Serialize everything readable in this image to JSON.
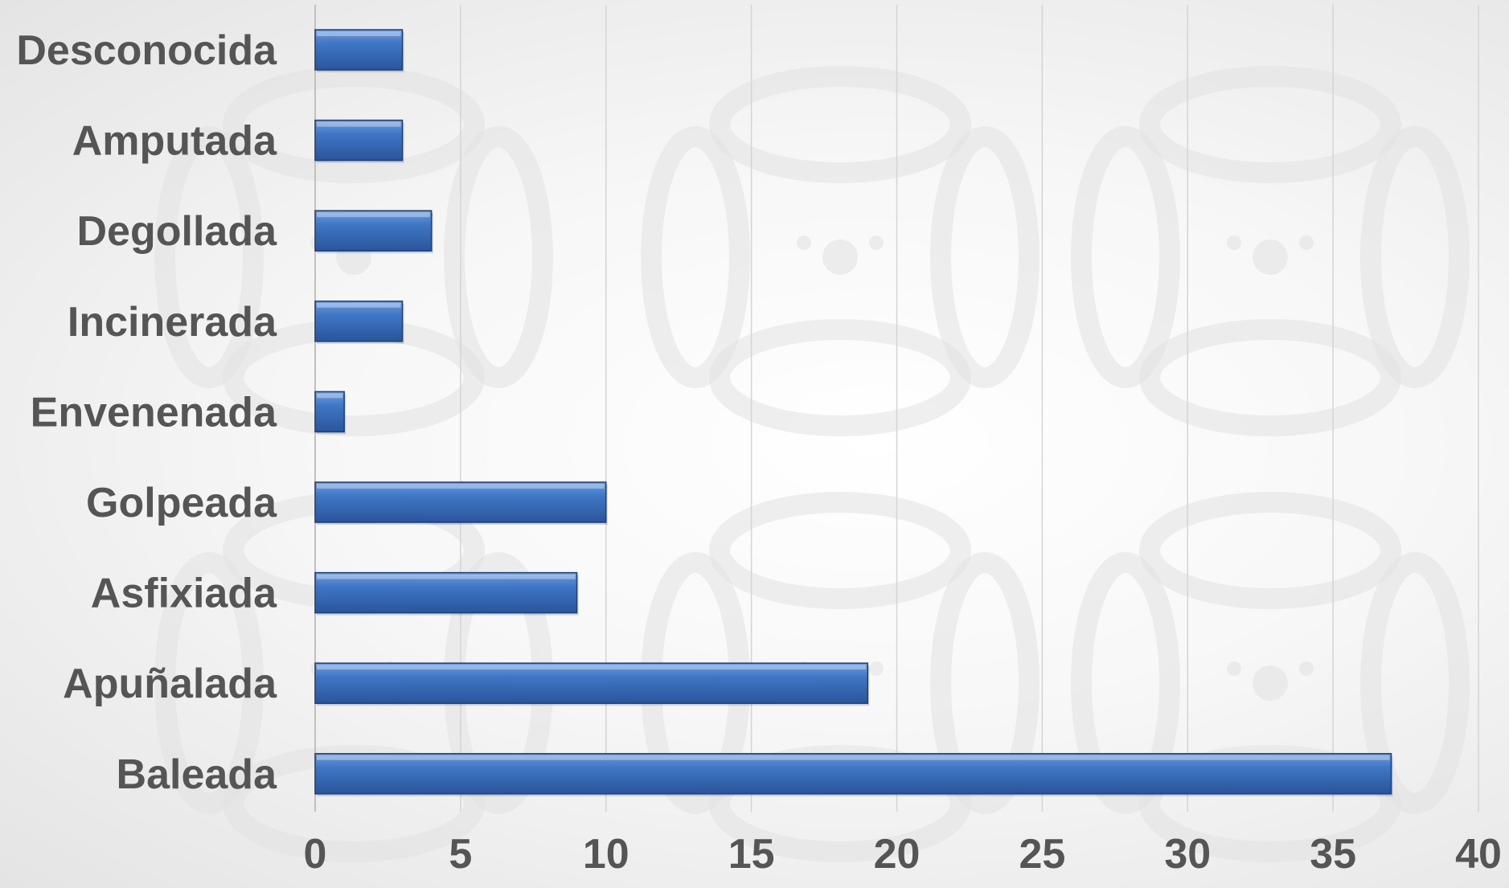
{
  "chart_data": {
    "type": "bar",
    "orientation": "horizontal",
    "categories": [
      "Desconocida",
      "Amputada",
      "Degollada",
      "Incinerada",
      "Envenenada",
      "Golpeada",
      "Asfixiada",
      "Apuñalada",
      "Baleada"
    ],
    "values": [
      3,
      3,
      4,
      3,
      1,
      10,
      9,
      19,
      37
    ],
    "xlim": [
      0,
      40
    ],
    "x_ticks": [
      0,
      5,
      10,
      15,
      20,
      25,
      30,
      35,
      40
    ],
    "title": "",
    "xlabel": "",
    "ylabel": "",
    "grid": "vertical",
    "legend": "none",
    "colors": {
      "bar_fill": "#3f76c4",
      "bar_light": "#6c9be0",
      "bar_dark": "#2a559b",
      "bar_edge": "#1f3f73",
      "gridline": "#d4d4d4",
      "axis": "#c0c0c0",
      "label_text": "#555555",
      "background_motif": "#e2e2e2"
    }
  }
}
